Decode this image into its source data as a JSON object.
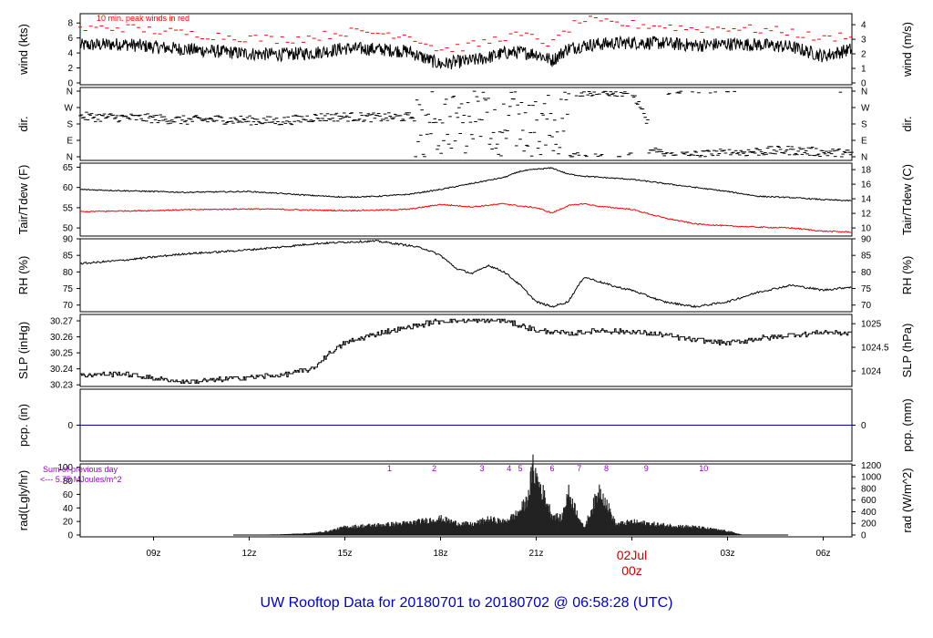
{
  "title": "UW Rooftop Data for 20180701  to  20180702 @ 06:58:28  (UTC)",
  "colors": {
    "title": "#0000cc",
    "axes": "#000000",
    "peak": "#ff0000",
    "dewpoint": "#ff0000",
    "precip": "#0000cc",
    "annotation": "#9900cc",
    "date": "#cc0000"
  },
  "x_axis": {
    "range_hours": [
      -17.3,
      6.9
    ],
    "ticks": [
      {
        "hour": -15,
        "label": "09z"
      },
      {
        "hour": -12,
        "label": "12z"
      },
      {
        "hour": -9,
        "label": "15z"
      },
      {
        "hour": -6,
        "label": "18z"
      },
      {
        "hour": -3,
        "label": "21z"
      },
      {
        "hour": 0,
        "label": "02Jul",
        "label2": "00z",
        "highlight": true
      },
      {
        "hour": 3,
        "label": "03z"
      },
      {
        "hour": 6,
        "label": "06z"
      }
    ]
  },
  "panels": {
    "wind": {
      "left_label": "wind (kts)",
      "right_label": "wind (m/s)",
      "left_ticks": [
        "0",
        "2",
        "4",
        "6",
        "8"
      ],
      "right_ticks": [
        "0",
        "1",
        "2",
        "3",
        "4"
      ],
      "annotation": "10 min. peak winds in red"
    },
    "dir": {
      "left_label": "dir.",
      "right_label": "dir.",
      "left_ticks": [
        "N",
        "E",
        "S",
        "W",
        "N"
      ],
      "right_ticks": [
        "N",
        "E",
        "S",
        "W",
        "N"
      ]
    },
    "temp": {
      "left_label": "Tair/Tdew (F)",
      "right_label": "Tair/Tdew (C)",
      "left_ticks": [
        "50",
        "55",
        "60",
        "65"
      ],
      "right_ticks": [
        "10",
        "12",
        "14",
        "16",
        "18"
      ]
    },
    "rh": {
      "left_label": "RH (%)",
      "right_label": "RH (%)",
      "left_ticks": [
        "70",
        "75",
        "80",
        "85",
        "90"
      ],
      "right_ticks": [
        "70",
        "75",
        "80",
        "85",
        "90"
      ]
    },
    "slp": {
      "left_label": "SLP (inHg)",
      "right_label": "SLP (hPa)",
      "left_ticks": [
        "30.23",
        "30.24",
        "30.25",
        "30.26",
        "30.27"
      ],
      "right_ticks": [
        "1024",
        "1024.5",
        "1025"
      ]
    },
    "pcp": {
      "left_label": "pcp. (in)",
      "right_label": "pcp. (mm)",
      "left_ticks": [
        "0"
      ],
      "right_ticks": [
        "0"
      ]
    },
    "rad": {
      "left_label": "rad(Lgly/hr)",
      "right_label": "rad (W/m^2)",
      "left_ticks": [
        "0",
        "20",
        "40",
        "60",
        "80",
        "100"
      ],
      "right_ticks": [
        "0",
        "200",
        "400",
        "600",
        "800",
        "1000",
        "1200"
      ],
      "sum_line1": "Sum of previous day",
      "sum_line2": "<--- 5.75 MJoules/m^2",
      "hour_markers": [
        "1",
        "2",
        "3",
        "4",
        "5",
        "6",
        "7",
        "8",
        "9",
        "10"
      ]
    }
  },
  "chart_data": {
    "type": "line",
    "x_unit": "hours relative to 02Jul 00z (UTC)",
    "panels": [
      {
        "name": "wind",
        "ylim_kts": [
          0,
          9
        ],
        "series": [
          {
            "name": "wind speed (kts)",
            "x": [
              -17.3,
              -16,
              -15,
              -14,
              -13,
              -12,
              -11,
              -10,
              -9,
              -8,
              -7,
              -6.5,
              -6,
              -5.5,
              -5,
              -4.5,
              -4,
              -3.5,
              -3,
              -2.5,
              -2,
              -1.5,
              -1,
              0,
              1,
              2,
              3,
              4,
              5,
              6,
              6.9
            ],
            "y": [
              5.0,
              5.2,
              4.8,
              4.5,
              4.2,
              3.9,
              3.8,
              4.0,
              4.6,
              4.5,
              4.2,
              3.3,
              2.5,
              2.8,
              3.0,
              3.4,
              4.0,
              4.1,
              3.9,
              3.0,
              4.6,
              5.0,
              5.2,
              5.4,
              5.3,
              5.0,
              5.2,
              5.1,
              4.8,
              3.6,
              4.5
            ]
          },
          {
            "name": "10 min. peak (kts)",
            "x": [
              -17.3,
              -16,
              -15,
              -14,
              -13,
              -12,
              -11,
              -10,
              -9,
              -8,
              -7,
              -6.5,
              -6,
              -5.5,
              -5,
              -4.5,
              -4,
              -3.5,
              -3,
              -2.5,
              -2,
              -1.5,
              -1,
              0,
              1,
              2,
              3,
              4,
              5,
              6,
              6.9
            ],
            "y": [
              7.2,
              7.4,
              7.0,
              6.6,
              6.3,
              6.0,
              5.8,
              6.1,
              6.8,
              6.7,
              6.4,
              5.4,
              4.4,
              4.7,
              5.0,
              5.5,
              6.2,
              6.3,
              6.0,
              5.1,
              7.2,
              8.5,
              8.0,
              7.8,
              7.6,
              7.2,
              7.4,
              7.1,
              6.8,
              5.8,
              6.6
            ]
          }
        ]
      },
      {
        "name": "dir",
        "ylim_deg": [
          0,
          360
        ],
        "series": [
          {
            "name": "wind direction (deg)",
            "x": [
              -17.3,
              -16,
              -15,
              -14,
              -13,
              -12,
              -11,
              -10,
              -9,
              -8,
              -7,
              -6.5,
              -6,
              -5.5,
              -5,
              -4.5,
              -4,
              -3.5,
              -3,
              -2.5,
              -2,
              -1,
              0,
              1,
              2,
              3,
              4,
              5,
              6,
              6.9
            ],
            "y": [
              220,
              215,
              210,
              200,
              205,
              200,
              195,
              215,
              220,
              215,
              218,
              225,
              330,
              340,
              350,
              355,
              355,
              355,
              350,
              355,
              358,
              355,
              358,
              5,
              10,
              20,
              30,
              35,
              25,
              15
            ]
          }
        ]
      },
      {
        "name": "temp",
        "ylim_F": [
          48,
          66
        ],
        "series": [
          {
            "name": "Tair (F)",
            "x": [
              -17.3,
              -16,
              -15,
              -14,
              -13,
              -12,
              -11,
              -10,
              -9,
              -8,
              -7,
              -6,
              -5,
              -4,
              -3.5,
              -3,
              -2.5,
              -2,
              -1.5,
              -1,
              0,
              1,
              2,
              3,
              4,
              5,
              6,
              6.9
            ],
            "y": [
              59.5,
              59.2,
              59.0,
              58.8,
              58.9,
              59.0,
              58.5,
              58.0,
              57.6,
              57.8,
              58.3,
              59.5,
              61.0,
              62.5,
              64.0,
              64.5,
              64.8,
              63.3,
              62.8,
              62.5,
              62.0,
              61.0,
              60.0,
              59.0,
              57.8,
              57.5,
              57.0,
              56.7
            ]
          },
          {
            "name": "Tdew (F)",
            "x": [
              -17.3,
              -16,
              -15,
              -14,
              -13,
              -12,
              -11,
              -10,
              -9,
              -8,
              -7,
              -6,
              -5,
              -4,
              -3.5,
              -3,
              -2.5,
              -2,
              -1.5,
              -1,
              0,
              1,
              2,
              3,
              4,
              5,
              6,
              6.9
            ],
            "y": [
              54.0,
              54.2,
              54.3,
              54.5,
              54.6,
              54.7,
              54.6,
              54.4,
              54.3,
              54.4,
              54.6,
              55.8,
              55.2,
              56.0,
              55.4,
              55.0,
              53.7,
              55.5,
              56.0,
              55.3,
              54.6,
              52.5,
              51.0,
              50.5,
              50.2,
              50.0,
              49.2,
              49.0
            ]
          }
        ]
      },
      {
        "name": "rh",
        "ylim_pct": [
          68,
          90
        ],
        "series": [
          {
            "name": "RH (%)",
            "x": [
              -17.3,
              -16,
              -15,
              -14,
              -13,
              -12,
              -11,
              -10,
              -9,
              -8,
              -7,
              -6.5,
              -6,
              -5.5,
              -5,
              -4.5,
              -4,
              -3.5,
              -3,
              -2.5,
              -2,
              -1.5,
              -1,
              -0.5,
              0,
              1,
              2,
              3,
              4,
              5,
              6,
              6.9
            ],
            "y": [
              82.5,
              83.5,
              84.5,
              85.5,
              86.0,
              86.7,
              87.5,
              88.5,
              89.0,
              89.3,
              88.0,
              87.0,
              85.0,
              81.0,
              79.5,
              82.0,
              80.0,
              76.0,
              71.0,
              69.5,
              71.0,
              78.5,
              77.0,
              75.5,
              74.5,
              71.0,
              69.5,
              71.0,
              74.0,
              76.0,
              74.5,
              75.5
            ]
          }
        ]
      },
      {
        "name": "slp",
        "ylim_inHg": [
          30.229,
          30.274
        ],
        "series": [
          {
            "name": "SLP (inHg)",
            "x": [
              -17.3,
              -16,
              -15,
              -14,
              -13,
              -12,
              -11,
              -10,
              -9.5,
              -9,
              -8,
              -7,
              -6,
              -5,
              -4,
              -3,
              -2,
              -1,
              0,
              1,
              2,
              3,
              4,
              5,
              6,
              6.9
            ],
            "y": [
              30.236,
              30.237,
              30.234,
              30.232,
              30.233,
              30.235,
              30.236,
              30.24,
              30.25,
              30.256,
              30.262,
              30.266,
              30.27,
              30.27,
              30.27,
              30.264,
              30.262,
              30.264,
              30.263,
              30.261,
              30.258,
              30.256,
              30.259,
              30.261,
              30.263,
              30.262
            ]
          }
        ]
      },
      {
        "name": "pcp",
        "ylim_in": [
          -0.01,
          0.01
        ],
        "series": [
          {
            "name": "precip (in)",
            "x": [
              -17.3,
              6.9
            ],
            "y": [
              0,
              0
            ]
          }
        ]
      },
      {
        "name": "rad",
        "ylim_lgly_hr": [
          0,
          105
        ],
        "series": [
          {
            "name": "radiation (Lgly/hr)",
            "x": [
              -17.3,
              -12.2,
              -11,
              -10,
              -9.5,
              -9,
              -8,
              -7,
              -6,
              -5.5,
              -5,
              -4.5,
              -4,
              -3.6,
              -3.3,
              -3.1,
              -2.5,
              -2.2,
              -2.0,
              -1.5,
              -1.0,
              -0.5,
              0,
              1,
              2,
              3,
              3.5,
              6.9
            ],
            "y": [
              0,
              0,
              1,
              3,
              6,
              12,
              15,
              18,
              25,
              18,
              16,
              24,
              20,
              32,
              50,
              100,
              30,
              25,
              65,
              10,
              70,
              16,
              20,
              15,
              12,
              6,
              0,
              0
            ]
          }
        ]
      }
    ]
  }
}
